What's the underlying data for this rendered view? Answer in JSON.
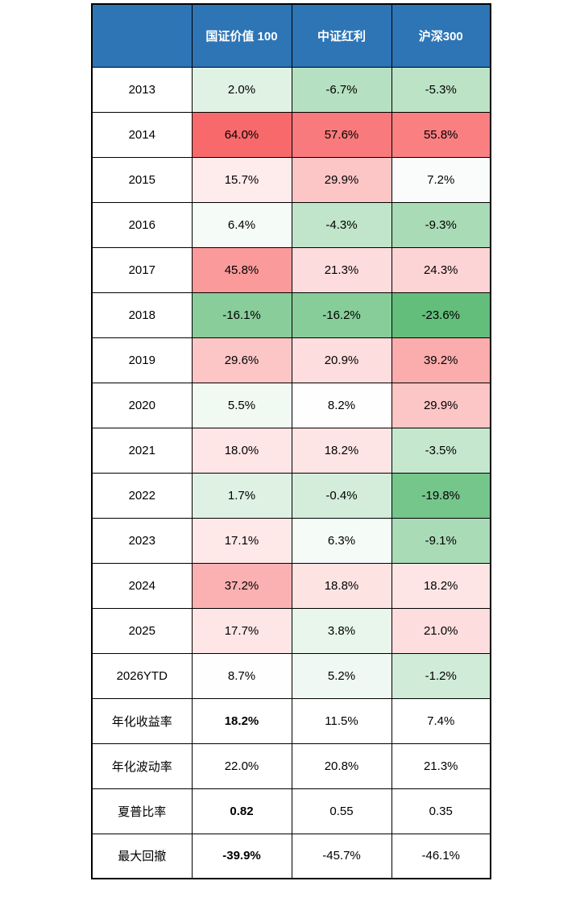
{
  "chart_data": {
    "type": "heatmap",
    "title": "",
    "corner_label": "",
    "columns": [
      "国证价值 100",
      "中证红利",
      "沪深300"
    ],
    "rows": [
      {
        "label": "2013",
        "cells": [
          {
            "text": "2.0%",
            "value": 2.0
          },
          {
            "text": "-6.7%",
            "value": -6.7
          },
          {
            "text": "-5.3%",
            "value": -5.3
          }
        ]
      },
      {
        "label": "2014",
        "cells": [
          {
            "text": "64.0%",
            "value": 64.0
          },
          {
            "text": "57.6%",
            "value": 57.6
          },
          {
            "text": "55.8%",
            "value": 55.8
          }
        ]
      },
      {
        "label": "2015",
        "cells": [
          {
            "text": "15.7%",
            "value": 15.7
          },
          {
            "text": "29.9%",
            "value": 29.9
          },
          {
            "text": "7.2%",
            "value": 7.2
          }
        ]
      },
      {
        "label": "2016",
        "cells": [
          {
            "text": "6.4%",
            "value": 6.4
          },
          {
            "text": "-4.3%",
            "value": -4.3
          },
          {
            "text": "-9.3%",
            "value": -9.3
          }
        ]
      },
      {
        "label": "2017",
        "cells": [
          {
            "text": "45.8%",
            "value": 45.8
          },
          {
            "text": "21.3%",
            "value": 21.3
          },
          {
            "text": "24.3%",
            "value": 24.3
          }
        ]
      },
      {
        "label": "2018",
        "cells": [
          {
            "text": "-16.1%",
            "value": -16.1
          },
          {
            "text": "-16.2%",
            "value": -16.2
          },
          {
            "text": "-23.6%",
            "value": -23.6
          }
        ]
      },
      {
        "label": "2019",
        "cells": [
          {
            "text": "29.6%",
            "value": 29.6
          },
          {
            "text": "20.9%",
            "value": 20.9
          },
          {
            "text": "39.2%",
            "value": 39.2
          }
        ]
      },
      {
        "label": "2020",
        "cells": [
          {
            "text": "5.5%",
            "value": 5.5
          },
          {
            "text": "8.2%",
            "value": 8.2
          },
          {
            "text": "29.9%",
            "value": 29.9
          }
        ]
      },
      {
        "label": "2021",
        "cells": [
          {
            "text": "18.0%",
            "value": 18.0
          },
          {
            "text": "18.2%",
            "value": 18.2
          },
          {
            "text": "-3.5%",
            "value": -3.5
          }
        ]
      },
      {
        "label": "2022",
        "cells": [
          {
            "text": "1.7%",
            "value": 1.7
          },
          {
            "text": "-0.4%",
            "value": -0.4
          },
          {
            "text": "-19.8%",
            "value": -19.8
          }
        ]
      },
      {
        "label": "2023",
        "cells": [
          {
            "text": "17.1%",
            "value": 17.1
          },
          {
            "text": "6.3%",
            "value": 6.3
          },
          {
            "text": "-9.1%",
            "value": -9.1
          }
        ]
      },
      {
        "label": "2024",
        "cells": [
          {
            "text": "37.2%",
            "value": 37.2
          },
          {
            "text": "18.8%",
            "value": 18.8
          },
          {
            "text": "18.2%",
            "value": 18.2
          }
        ]
      },
      {
        "label": "2025",
        "cells": [
          {
            "text": "17.7%",
            "value": 17.7
          },
          {
            "text": "3.8%",
            "value": 3.8
          },
          {
            "text": "21.0%",
            "value": 21.0
          }
        ]
      },
      {
        "label": "2026YTD",
        "cells": [
          {
            "text": "8.7%",
            "value": 8.7
          },
          {
            "text": "5.2%",
            "value": 5.2
          },
          {
            "text": "-1.2%",
            "value": -1.2
          }
        ]
      },
      {
        "label": "年化收益率",
        "cells": [
          {
            "text": "18.2%",
            "bold": true
          },
          {
            "text": "11.5%"
          },
          {
            "text": "7.4%"
          }
        ]
      },
      {
        "label": "年化波动率",
        "cells": [
          {
            "text": "22.0%"
          },
          {
            "text": "20.8%"
          },
          {
            "text": "21.3%"
          }
        ]
      },
      {
        "label": "夏普比率",
        "cells": [
          {
            "text": "0.82",
            "bold": true
          },
          {
            "text": "0.55"
          },
          {
            "text": "0.35"
          }
        ]
      },
      {
        "label": "最大回撤",
        "cells": [
          {
            "text": "-39.9%",
            "bold": true
          },
          {
            "text": "-45.7%"
          },
          {
            "text": "-46.1%"
          }
        ]
      }
    ],
    "color_scale": {
      "high_color": "#F8696B",
      "mid_color": "#FFFFFF",
      "low_color": "#63BE7B",
      "high_value": 64.0,
      "mid_value": 8.45,
      "low_value": -23.6
    },
    "legend_position": "none",
    "grid": true
  },
  "colors": {
    "page_bg": "#FFFFFF",
    "header_bg": "#2E75B6",
    "header_text": "#FFFFFF",
    "border": "#000000",
    "cell_text": "#000000"
  }
}
